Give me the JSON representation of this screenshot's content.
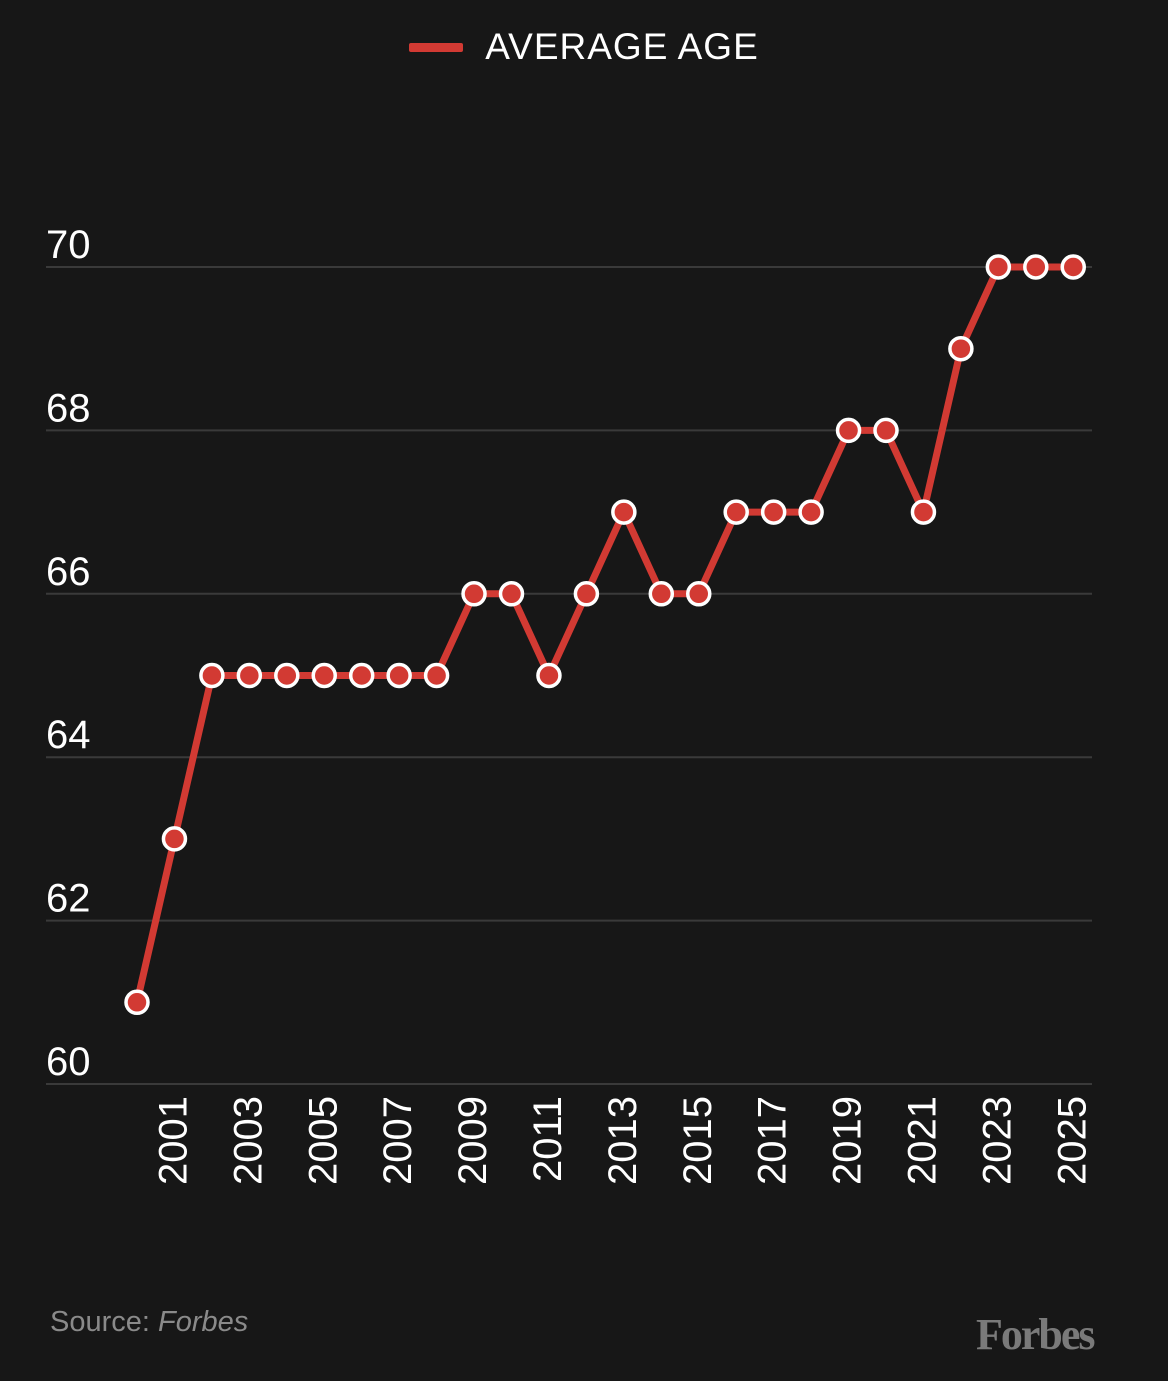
{
  "colors": {
    "background": "#171717",
    "line": "#d23a33",
    "grid": "#3a3a3a",
    "text": "#ffffff",
    "muted": "#8a8a8a"
  },
  "chart_data": {
    "type": "line",
    "legend_position": "top-center",
    "grid": true,
    "ylim": [
      60,
      70
    ],
    "yticks": [
      60,
      62,
      64,
      66,
      68,
      70
    ],
    "xticks": [
      2001,
      2003,
      2005,
      2007,
      2009,
      2011,
      2013,
      2015,
      2017,
      2019,
      2021,
      2023,
      2025
    ],
    "x": [
      2000,
      2001,
      2002,
      2003,
      2004,
      2005,
      2006,
      2007,
      2008,
      2009,
      2010,
      2011,
      2012,
      2013,
      2014,
      2015,
      2016,
      2017,
      2018,
      2019,
      2020,
      2021,
      2022,
      2023,
      2024,
      2025
    ],
    "series": [
      {
        "name": "AVERAGE AGE",
        "values": [
          61,
          63,
          65,
          65,
          65,
          65,
          65,
          65,
          65,
          66,
          66,
          65,
          66,
          67,
          66,
          66,
          67,
          67,
          67,
          68,
          68,
          67,
          69,
          70,
          70,
          70
        ]
      }
    ]
  },
  "footer": {
    "source_prefix": "Source: ",
    "source_name": "Forbes",
    "brand": "Forbes"
  }
}
